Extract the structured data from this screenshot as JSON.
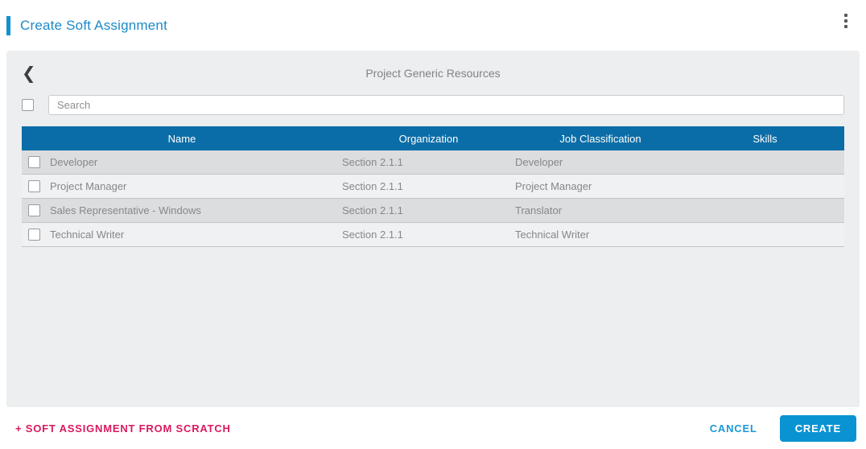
{
  "header": {
    "title": "Create Soft Assignment",
    "kebab_icon": "kebab-vertical"
  },
  "panel": {
    "back_icon": "chevron-left",
    "title": "Project Generic Resources",
    "search": {
      "placeholder": "Search",
      "value": "",
      "select_all_checked": false
    },
    "table": {
      "columns": [
        "Name",
        "Organization",
        "Job Classification",
        "Skills"
      ],
      "rows": [
        {
          "checked": false,
          "name": "Developer",
          "organization": "Section 2.1.1",
          "job_classification": "Developer",
          "skills": ""
        },
        {
          "checked": false,
          "name": "Project Manager",
          "organization": "Section 2.1.1",
          "job_classification": "Project Manager",
          "skills": ""
        },
        {
          "checked": false,
          "name": "Sales Representative - Windows",
          "organization": "Section 2.1.1",
          "job_classification": "Translator",
          "skills": ""
        },
        {
          "checked": false,
          "name": "Technical Writer",
          "organization": "Section 2.1.1",
          "job_classification": "Technical Writer",
          "skills": ""
        }
      ]
    }
  },
  "footer": {
    "scratch_link_label": "+ SOFT ASSIGNMENT FROM SCRATCH",
    "cancel_label": "CANCEL",
    "create_label": "CREATE"
  },
  "colors": {
    "title_blue": "#1b8ac9",
    "accent_bar_blue": "#1191d0",
    "table_header_blue": "#0b6da7",
    "button_blue": "#0a93d2",
    "cancel_blue": "#1a9ad6",
    "link_pink": "#d9195e",
    "panel_gray": "#eceeef",
    "row_dark_gray": "#dcddde",
    "row_light_gray": "#eff1f2"
  }
}
